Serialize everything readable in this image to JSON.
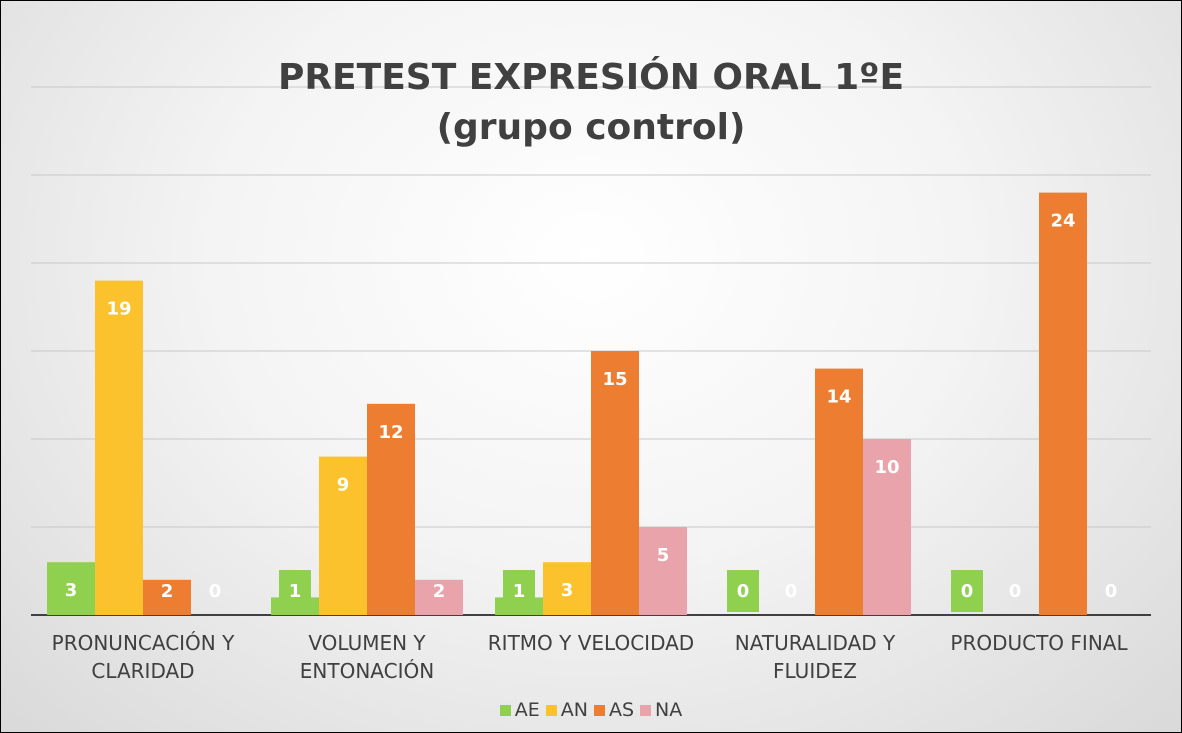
{
  "chart_data": {
    "type": "bar",
    "title": [
      "PRETEST EXPRESIÓN ORAL 1ºE",
      "(grupo control)"
    ],
    "categories": [
      "PRONUNCACIÓN Y CLARIDAD",
      "VOLUMEN Y ENTONACIÓN",
      "RITMO Y VELOCIDAD",
      "NATURALIDAD Y FLUIDEZ",
      "PRODUCTO FINAL"
    ],
    "series": [
      {
        "name": "AE",
        "color": "#8fd14f",
        "values": [
          3,
          1,
          1,
          0,
          0
        ]
      },
      {
        "name": "AN",
        "color": "#fcc22d",
        "values": [
          19,
          9,
          3,
          0,
          0
        ]
      },
      {
        "name": "AS",
        "color": "#ed7d31",
        "values": [
          2,
          12,
          15,
          14,
          24
        ]
      },
      {
        "name": "NA",
        "color": "#e9a3aa",
        "values": [
          0,
          2,
          5,
          10,
          0
        ]
      }
    ],
    "ylim": [
      0,
      30
    ],
    "yticks": [
      0,
      5,
      10,
      15,
      20,
      25,
      30
    ],
    "grid": true
  }
}
